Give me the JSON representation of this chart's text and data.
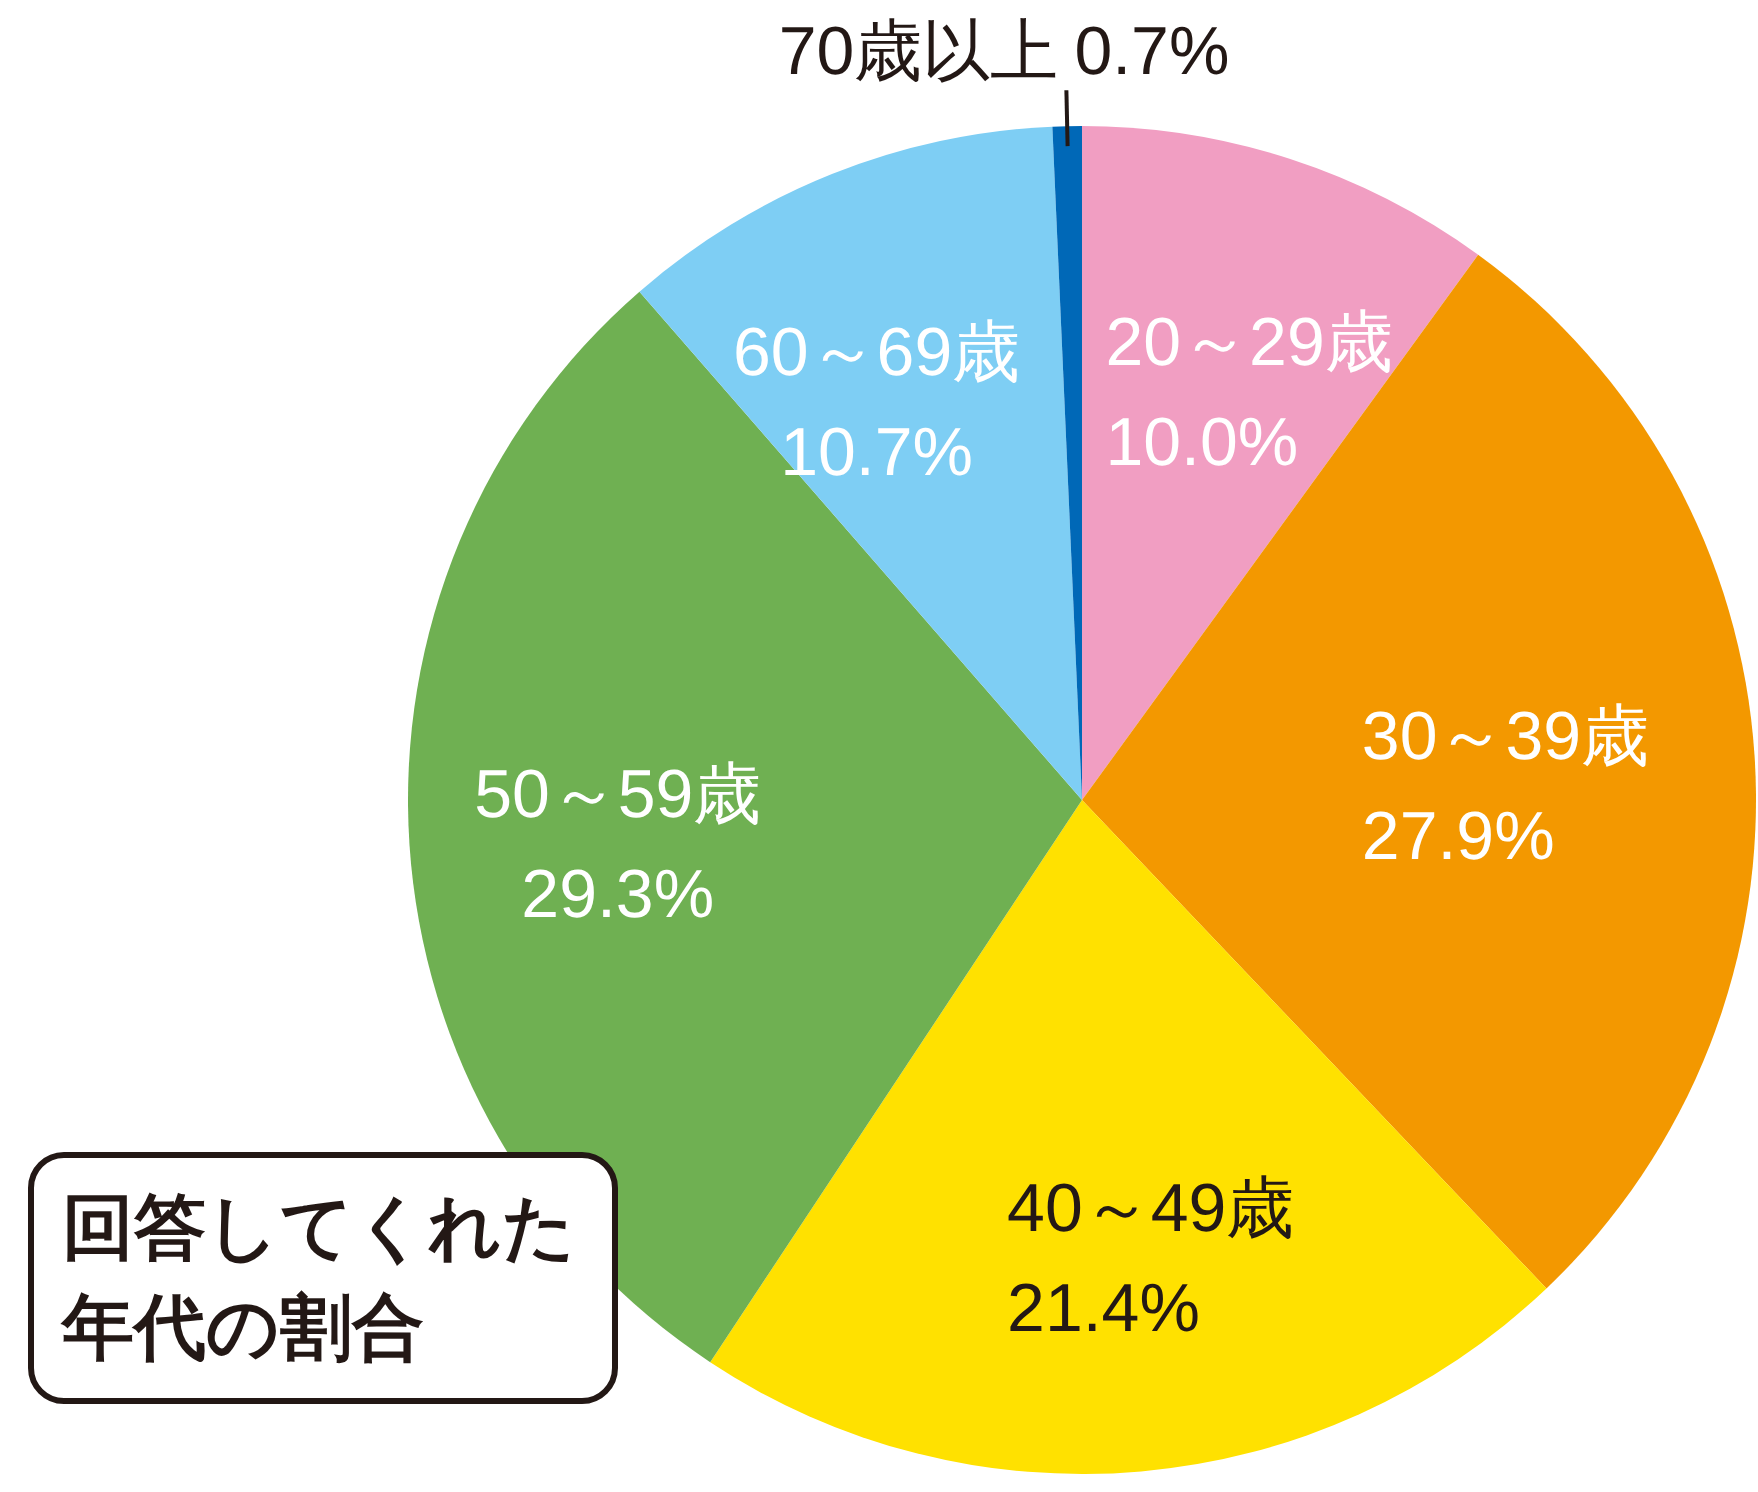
{
  "chart_data": {
    "type": "pie",
    "title": "回答してくれた年代の割合",
    "categories": [
      "20～29歳",
      "30～39歳",
      "40～49歳",
      "50～59歳",
      "60～69歳",
      "70歳以上"
    ],
    "values": [
      10.0,
      27.9,
      21.4,
      29.3,
      10.7,
      0.7
    ],
    "colors": [
      "#f19ec2",
      "#f39800",
      "#ffe100",
      "#6fb052",
      "#7ecef4",
      "#0068b7"
    ],
    "value_labels": [
      "10.0%",
      "27.9%",
      "21.4%",
      "29.3%",
      "10.7%",
      "0.7%"
    ]
  }
}
